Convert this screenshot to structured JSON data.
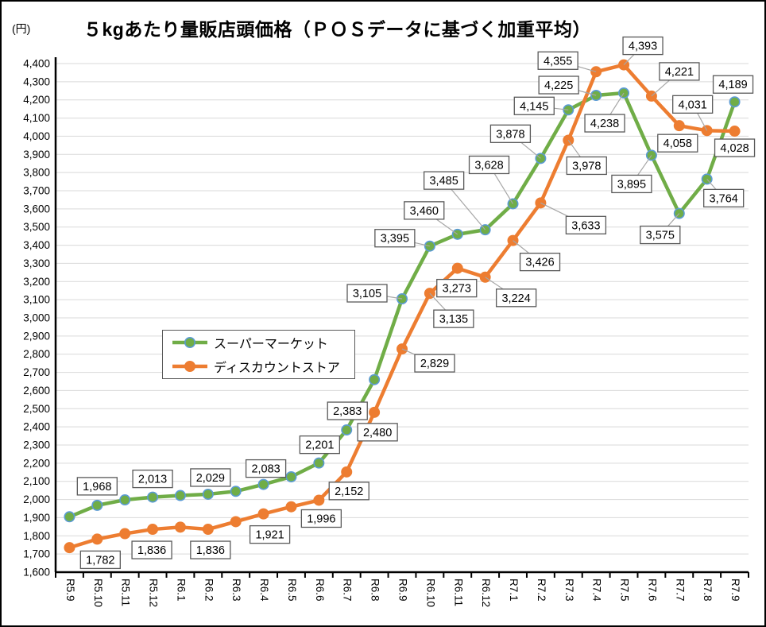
{
  "title": "５kgあたり量販店頭価格（ＰＯＳデータに基づく加重平均）",
  "unit_label": "(円)",
  "chart_data": {
    "type": "line",
    "title": "５kgあたり量販店頭価格（ＰＯＳデータに基づく加重平均）",
    "ylabel": "(円)",
    "ylim": [
      1600,
      4400
    ],
    "ytick_step": 100,
    "grid": true,
    "legend_position": "inside-upper-left",
    "categories": [
      "R5.9",
      "R5.10",
      "R5.11",
      "R5.12",
      "R6.1",
      "R6.2",
      "R6.3",
      "R6.4",
      "R6.5",
      "R6.6",
      "R6.7",
      "R6.8",
      "R6.9",
      "R6.10",
      "R6.11",
      "R6.12",
      "R7.1",
      "R7.2",
      "R7.3",
      "R7.4",
      "R7.5",
      "R7.6",
      "R7.7",
      "R7.8",
      "R7.9"
    ],
    "series": [
      {
        "name": "スーパーマーケット",
        "color": "#70AD47",
        "marker_ring": "#5B9BD5",
        "values": [
          1905,
          1968,
          1998,
          2013,
          2022,
          2029,
          2045,
          2083,
          2125,
          2201,
          2383,
          2660,
          3105,
          3395,
          3460,
          3485,
          3628,
          3878,
          4145,
          4225,
          4238,
          3895,
          3575,
          3764,
          4189
        ],
        "labels": [
          null,
          "1,968",
          null,
          "2,013",
          null,
          "2,029",
          null,
          "2,083",
          null,
          "2,201",
          "2,383",
          null,
          "3,105",
          "3,395",
          "3,460",
          "3,485",
          "3,628",
          "3,878",
          "4,145",
          "4,225",
          "4,238",
          "3,895",
          "3,575",
          "3,764",
          "4,189"
        ]
      },
      {
        "name": "ディスカウントストア",
        "color": "#ED7D31",
        "marker_ring": "#ED7D31",
        "values": [
          1735,
          1782,
          1812,
          1836,
          1848,
          1836,
          1878,
          1921,
          1960,
          1996,
          2152,
          2480,
          2829,
          3135,
          3273,
          3224,
          3426,
          3633,
          3978,
          4355,
          4393,
          4221,
          4058,
          4031,
          4028
        ],
        "labels": [
          null,
          "1,782",
          null,
          "1,836",
          null,
          "1,836",
          null,
          "1,921",
          null,
          "1,996",
          "2,152",
          "2,480",
          "2,829",
          "3,135",
          "3,273",
          "3,224",
          "3,426",
          "3,633",
          "3,978",
          "4,355",
          "4,393",
          "4,221",
          "4,058",
          "4,031",
          "4,028"
        ]
      }
    ],
    "style": {
      "gridline_color": "#D9D9D9",
      "axis_color": "#000000",
      "label_box_border": "#595959",
      "leader_line_color": "#A6A6A6",
      "tick_label_color": "#000000"
    }
  }
}
